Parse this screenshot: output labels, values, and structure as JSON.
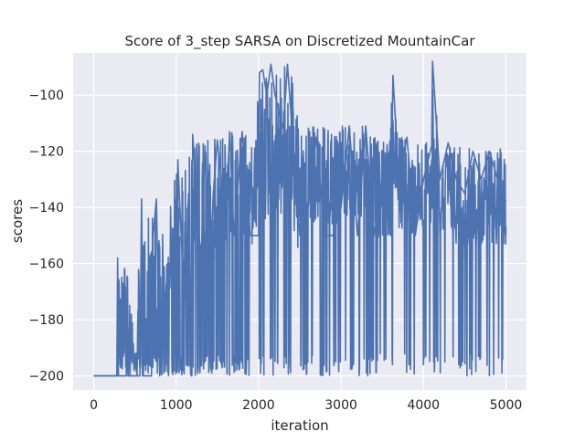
{
  "chart_data": {
    "type": "line",
    "title": "Score of 3_step SARSA on Discretized MountainCar",
    "xlabel": "iteration",
    "ylabel": "scores",
    "xlim": [
      -250,
      5250
    ],
    "ylim": [
      -205,
      -85
    ],
    "xticks": [
      0,
      1000,
      2000,
      3000,
      4000,
      5000
    ],
    "yticks": [
      -200,
      -180,
      -160,
      -140,
      -120,
      -100
    ],
    "xtick_labels": [
      "0",
      "1000",
      "2000",
      "3000",
      "4000",
      "5000"
    ],
    "ytick_labels": [
      "−200",
      "−180",
      "−160",
      "−140",
      "−120",
      "−100"
    ],
    "grid": true,
    "legend": "none",
    "series": [
      {
        "color": "#4c72b0",
        "x_start": 0,
        "x_end": 5000,
        "description_points": [
          [
            0,
            -200
          ],
          [
            280,
            -200
          ],
          [
            290,
            -158
          ],
          [
            300,
            -200
          ],
          [
            400,
            -200
          ],
          [
            410,
            -165
          ],
          [
            420,
            -200
          ],
          [
            560,
            -200
          ],
          [
            580,
            -137
          ],
          [
            600,
            -200
          ],
          [
            700,
            -200
          ],
          [
            720,
            -150
          ],
          [
            760,
            -137
          ],
          [
            800,
            -200
          ],
          [
            900,
            -160
          ],
          [
            1000,
            -170
          ],
          [
            1020,
            -123
          ],
          [
            1100,
            -175
          ],
          [
            1150,
            -135
          ],
          [
            1190,
            -200
          ],
          [
            1200,
            -114
          ],
          [
            1300,
            -160
          ],
          [
            1350,
            -118
          ],
          [
            1400,
            -170
          ],
          [
            1450,
            -135
          ],
          [
            1500,
            -116
          ],
          [
            1600,
            -145
          ],
          [
            1650,
            -113
          ],
          [
            1700,
            -150
          ],
          [
            1800,
            -113
          ],
          [
            1900,
            -150
          ],
          [
            2000,
            -150
          ],
          [
            2010,
            -92
          ],
          [
            2050,
            -91
          ],
          [
            2100,
            -100
          ],
          [
            2150,
            -89
          ],
          [
            2200,
            -100
          ],
          [
            2300,
            -112
          ],
          [
            2350,
            -89
          ],
          [
            2400,
            -110
          ],
          [
            2500,
            -150
          ],
          [
            2600,
            -140
          ],
          [
            2700,
            -115
          ],
          [
            2800,
            -150
          ],
          [
            2900,
            -150
          ],
          [
            3000,
            -140
          ],
          [
            3100,
            -111
          ],
          [
            3200,
            -150
          ],
          [
            3300,
            -111
          ],
          [
            3400,
            -150
          ],
          [
            3500,
            -130
          ],
          [
            3600,
            -150
          ],
          [
            3630,
            -93
          ],
          [
            3700,
            -130
          ],
          [
            3800,
            -115
          ],
          [
            3900,
            -150
          ],
          [
            4000,
            -130
          ],
          [
            4100,
            -118
          ],
          [
            4110,
            -88
          ],
          [
            4200,
            -130
          ],
          [
            4300,
            -117
          ],
          [
            4400,
            -130
          ],
          [
            4500,
            -135
          ],
          [
            4600,
            -120
          ],
          [
            4700,
            -130
          ],
          [
            4800,
            -120
          ],
          [
            4900,
            -130
          ],
          [
            5000,
            -138
          ]
        ],
        "upper_envelope": [
          [
            0,
            -200
          ],
          [
            279,
            -200
          ],
          [
            290,
            -158
          ],
          [
            300,
            -158
          ],
          [
            395,
            -158
          ],
          [
            405,
            -165
          ],
          [
            560,
            -156
          ],
          [
            580,
            -137
          ],
          [
            700,
            -145
          ],
          [
            740,
            -137
          ],
          [
            800,
            -145
          ],
          [
            850,
            -145
          ],
          [
            950,
            -132
          ],
          [
            1020,
            -123
          ],
          [
            1100,
            -128
          ],
          [
            1150,
            -118
          ],
          [
            1200,
            -114
          ],
          [
            1300,
            -118
          ],
          [
            1350,
            -115
          ],
          [
            1450,
            -116
          ],
          [
            1500,
            -114
          ],
          [
            1600,
            -113
          ],
          [
            1700,
            -113
          ],
          [
            1800,
            -113
          ],
          [
            1950,
            -118
          ],
          [
            2010,
            -92
          ],
          [
            2100,
            -91
          ],
          [
            2200,
            -90
          ],
          [
            2300,
            -90
          ],
          [
            2400,
            -89
          ],
          [
            2500,
            -112
          ],
          [
            2700,
            -111
          ],
          [
            2900,
            -111
          ],
          [
            3100,
            -111
          ],
          [
            3300,
            -111
          ],
          [
            3450,
            -116
          ],
          [
            3600,
            -116
          ],
          [
            3620,
            -94
          ],
          [
            3700,
            -114
          ],
          [
            3850,
            -116
          ],
          [
            4000,
            -116
          ],
          [
            4100,
            -117
          ],
          [
            4110,
            -88
          ],
          [
            4200,
            -117
          ],
          [
            4400,
            -118
          ],
          [
            4600,
            -119
          ],
          [
            4800,
            -119
          ],
          [
            5000,
            -119
          ]
        ],
        "lower_envelope": [
          [
            0,
            -200
          ],
          [
            5000,
            -200
          ]
        ]
      }
    ]
  }
}
